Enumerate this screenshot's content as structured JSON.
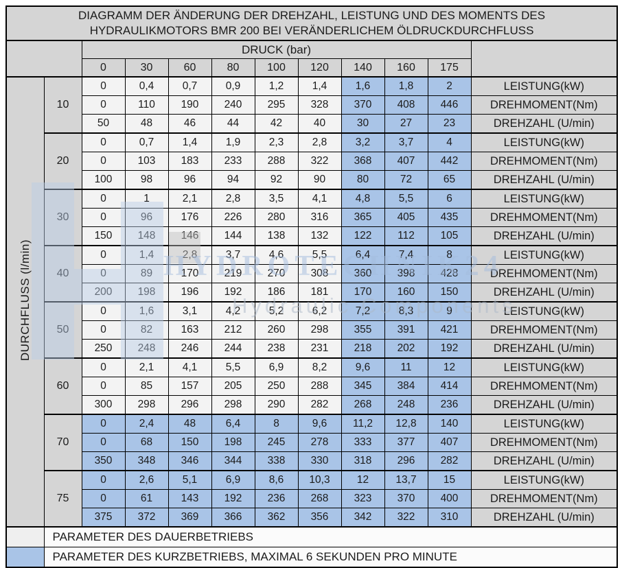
{
  "title_line1": "DIAGRAMM DER ÄNDERUNG DER DREHZAHL, LEISTUNG UND DES MOMENTS DES",
  "title_line2": "HYDRAULIKMOTORS BMR 200 BEI VERÄNDERLICHEM ÖLDRUCKDURCHFLUSS",
  "pressure_header": "DRUCK (bar)",
  "flow_axis_label": "DURCHFLUSS (l/min)",
  "pressure_columns": [
    "0",
    "30",
    "60",
    "80",
    "100",
    "120",
    "140",
    "160",
    "175"
  ],
  "row_labels": {
    "power": "LEISTUNG(kW)",
    "torque": "DREHMOMENT(Nm)",
    "speed": "DREHZAHL (U/min)"
  },
  "highlight_start_col": 6,
  "colors": {
    "continuous_cell": "#f3f3f3",
    "short_term_cell": "#a9c4e7",
    "header_cell": "#d5d5d5"
  },
  "flows": [
    {
      "flow": "10",
      "all_highlight": false,
      "power": [
        "0",
        "0,4",
        "0,7",
        "0,9",
        "1,2",
        "1,4",
        "1,6",
        "1,8",
        "2"
      ],
      "torque": [
        "0",
        "110",
        "190",
        "240",
        "295",
        "328",
        "370",
        "408",
        "446"
      ],
      "speed": [
        "50",
        "48",
        "46",
        "44",
        "42",
        "40",
        "30",
        "27",
        "23"
      ]
    },
    {
      "flow": "20",
      "all_highlight": false,
      "power": [
        "0",
        "0,7",
        "1,4",
        "1,9",
        "2,3",
        "2,8",
        "3,2",
        "3,7",
        "4"
      ],
      "torque": [
        "0",
        "103",
        "183",
        "233",
        "288",
        "322",
        "368",
        "407",
        "442"
      ],
      "speed": [
        "100",
        "98",
        "96",
        "94",
        "92",
        "90",
        "80",
        "72",
        "65"
      ]
    },
    {
      "flow": "30",
      "all_highlight": false,
      "power": [
        "0",
        "1",
        "2,1",
        "2,8",
        "3,5",
        "4,1",
        "4,8",
        "5,5",
        "6"
      ],
      "torque": [
        "0",
        "96",
        "176",
        "226",
        "280",
        "316",
        "365",
        "405",
        "435"
      ],
      "speed": [
        "150",
        "148",
        "146",
        "144",
        "138",
        "132",
        "122",
        "112",
        "105"
      ]
    },
    {
      "flow": "40",
      "all_highlight": false,
      "power": [
        "0",
        "1,4",
        "2,8",
        "3,7",
        "4,6",
        "5,5",
        "6,4",
        "7,4",
        "8"
      ],
      "torque": [
        "0",
        "89",
        "170",
        "219",
        "270",
        "308",
        "360",
        "398",
        "428"
      ],
      "speed": [
        "200",
        "198",
        "196",
        "192",
        "186",
        "181",
        "170",
        "160",
        "150"
      ]
    },
    {
      "flow": "50",
      "all_highlight": false,
      "power": [
        "0",
        "1,6",
        "3,1",
        "4,2",
        "5,2",
        "6,2",
        "7,2",
        "8,3",
        "9"
      ],
      "torque": [
        "0",
        "82",
        "163",
        "212",
        "260",
        "298",
        "355",
        "391",
        "421"
      ],
      "speed": [
        "250",
        "248",
        "246",
        "244",
        "238",
        "231",
        "218",
        "202",
        "192"
      ]
    },
    {
      "flow": "60",
      "all_highlight": false,
      "power": [
        "0",
        "2,1",
        "4,1",
        "5,5",
        "6,9",
        "8,2",
        "9,6",
        "11",
        "12"
      ],
      "torque": [
        "0",
        "85",
        "157",
        "205",
        "250",
        "288",
        "345",
        "384",
        "414"
      ],
      "speed": [
        "300",
        "298",
        "296",
        "298",
        "290",
        "282",
        "268",
        "248",
        "236"
      ]
    },
    {
      "flow": "70",
      "all_highlight": true,
      "power": [
        "0",
        "2,4",
        "48",
        "6,4",
        "8",
        "9,6",
        "11,2",
        "12,8",
        "140"
      ],
      "torque": [
        "0",
        "68",
        "150",
        "198",
        "245",
        "278",
        "333",
        "377",
        "407"
      ],
      "speed": [
        "350",
        "348",
        "346",
        "344",
        "338",
        "330",
        "318",
        "296",
        "282"
      ]
    },
    {
      "flow": "75",
      "all_highlight": true,
      "power": [
        "0",
        "2,6",
        "5,1",
        "6,9",
        "8,6",
        "10,3",
        "12",
        "13,7",
        "15"
      ],
      "torque": [
        "0",
        "61",
        "143",
        "192",
        "236",
        "268",
        "323",
        "370",
        "400"
      ],
      "speed": [
        "375",
        "372",
        "369",
        "366",
        "362",
        "356",
        "342",
        "322",
        "310"
      ]
    }
  ],
  "legend": [
    {
      "label": "PARAMETER DES DAUERBETRIEBS",
      "swatch": "continuous"
    },
    {
      "label": "PARAMETER DES KURZBETRIEBS, MAXIMAL 6 SEKUNDEN PRO MINUTE",
      "swatch": "short_term"
    }
  ],
  "watermark": {
    "line1": "HYDROTECHNIK24",
    "line2": "Hydraulic Components"
  }
}
